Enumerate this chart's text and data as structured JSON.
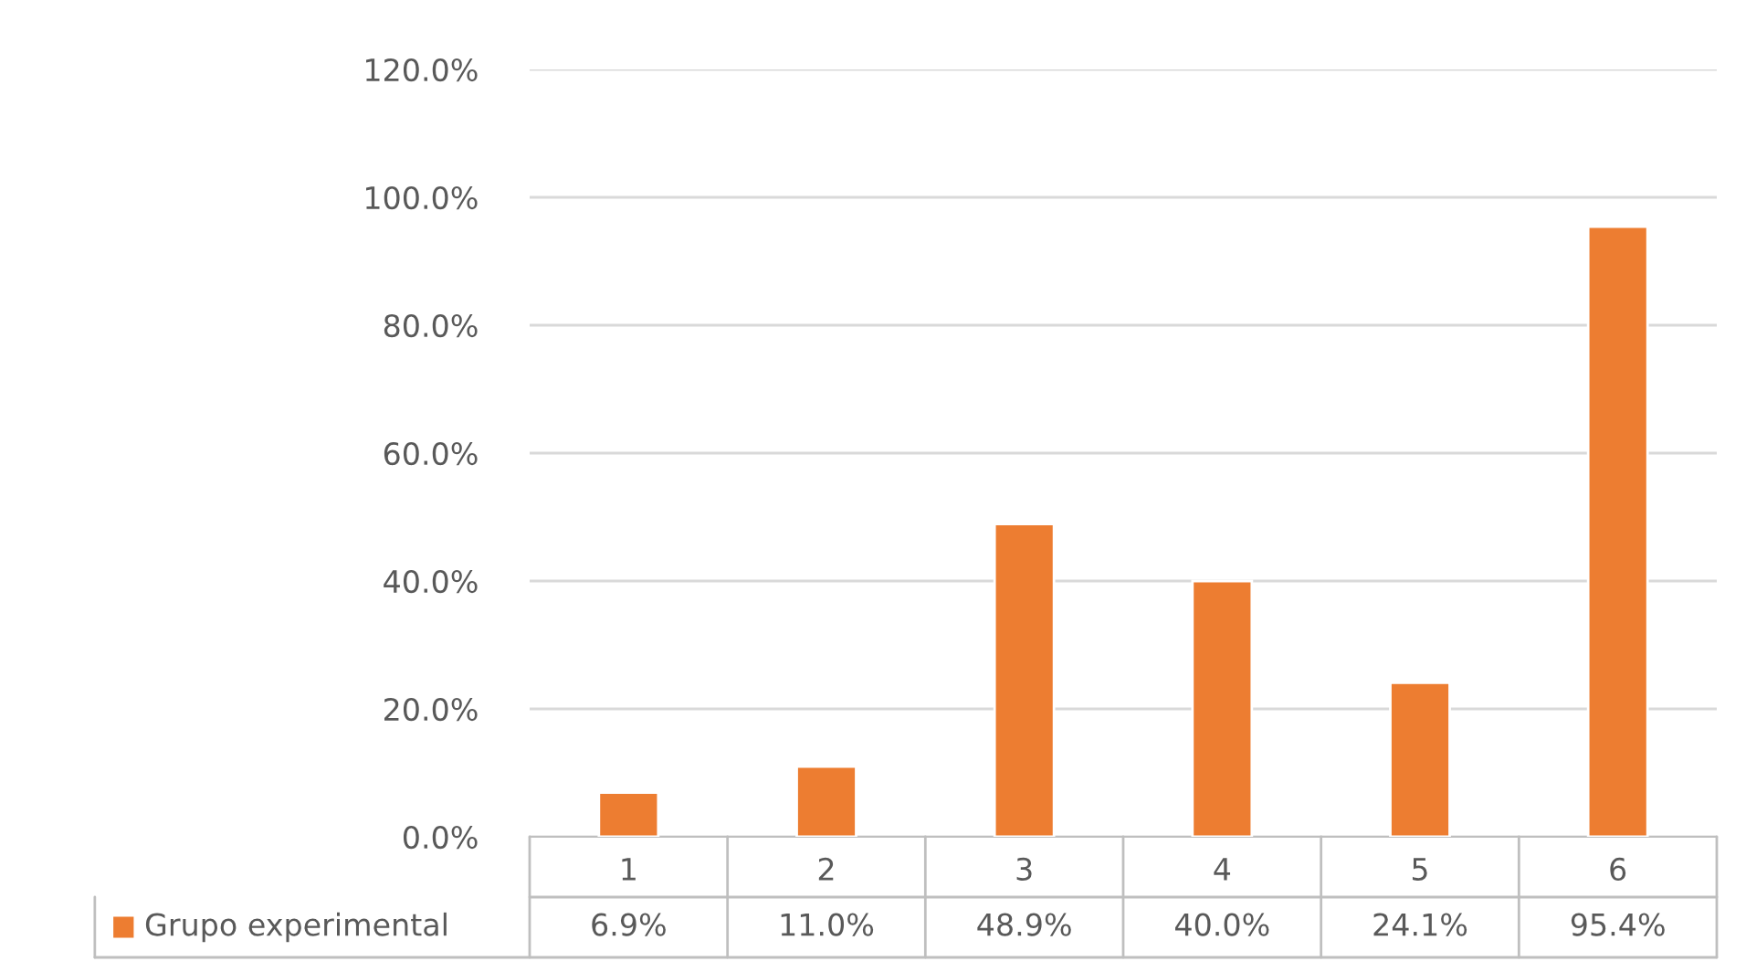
{
  "chart_data": {
    "type": "bar",
    "categories": [
      "1",
      "2",
      "3",
      "4",
      "5",
      "6"
    ],
    "series": [
      {
        "name": "Grupo experimental",
        "color": "#ed7d31",
        "values": [
          6.9,
          11.0,
          48.9,
          40.0,
          24.1,
          95.4
        ],
        "value_labels": [
          "6.9%",
          "11.0%",
          "48.9%",
          "40.0%",
          "24.1%",
          "95.4%"
        ]
      }
    ],
    "ylim": [
      0,
      120
    ],
    "yticks": [
      {
        "value": 0,
        "label": "0.0%"
      },
      {
        "value": 20,
        "label": "20.0%"
      },
      {
        "value": 40,
        "label": "40.0%"
      },
      {
        "value": 60,
        "label": "60.0%"
      },
      {
        "value": 80,
        "label": "80.0%"
      },
      {
        "value": 100,
        "label": "100.0%"
      },
      {
        "value": 120,
        "label": "120.0%"
      }
    ],
    "grid": "y",
    "legend": "bottom"
  }
}
